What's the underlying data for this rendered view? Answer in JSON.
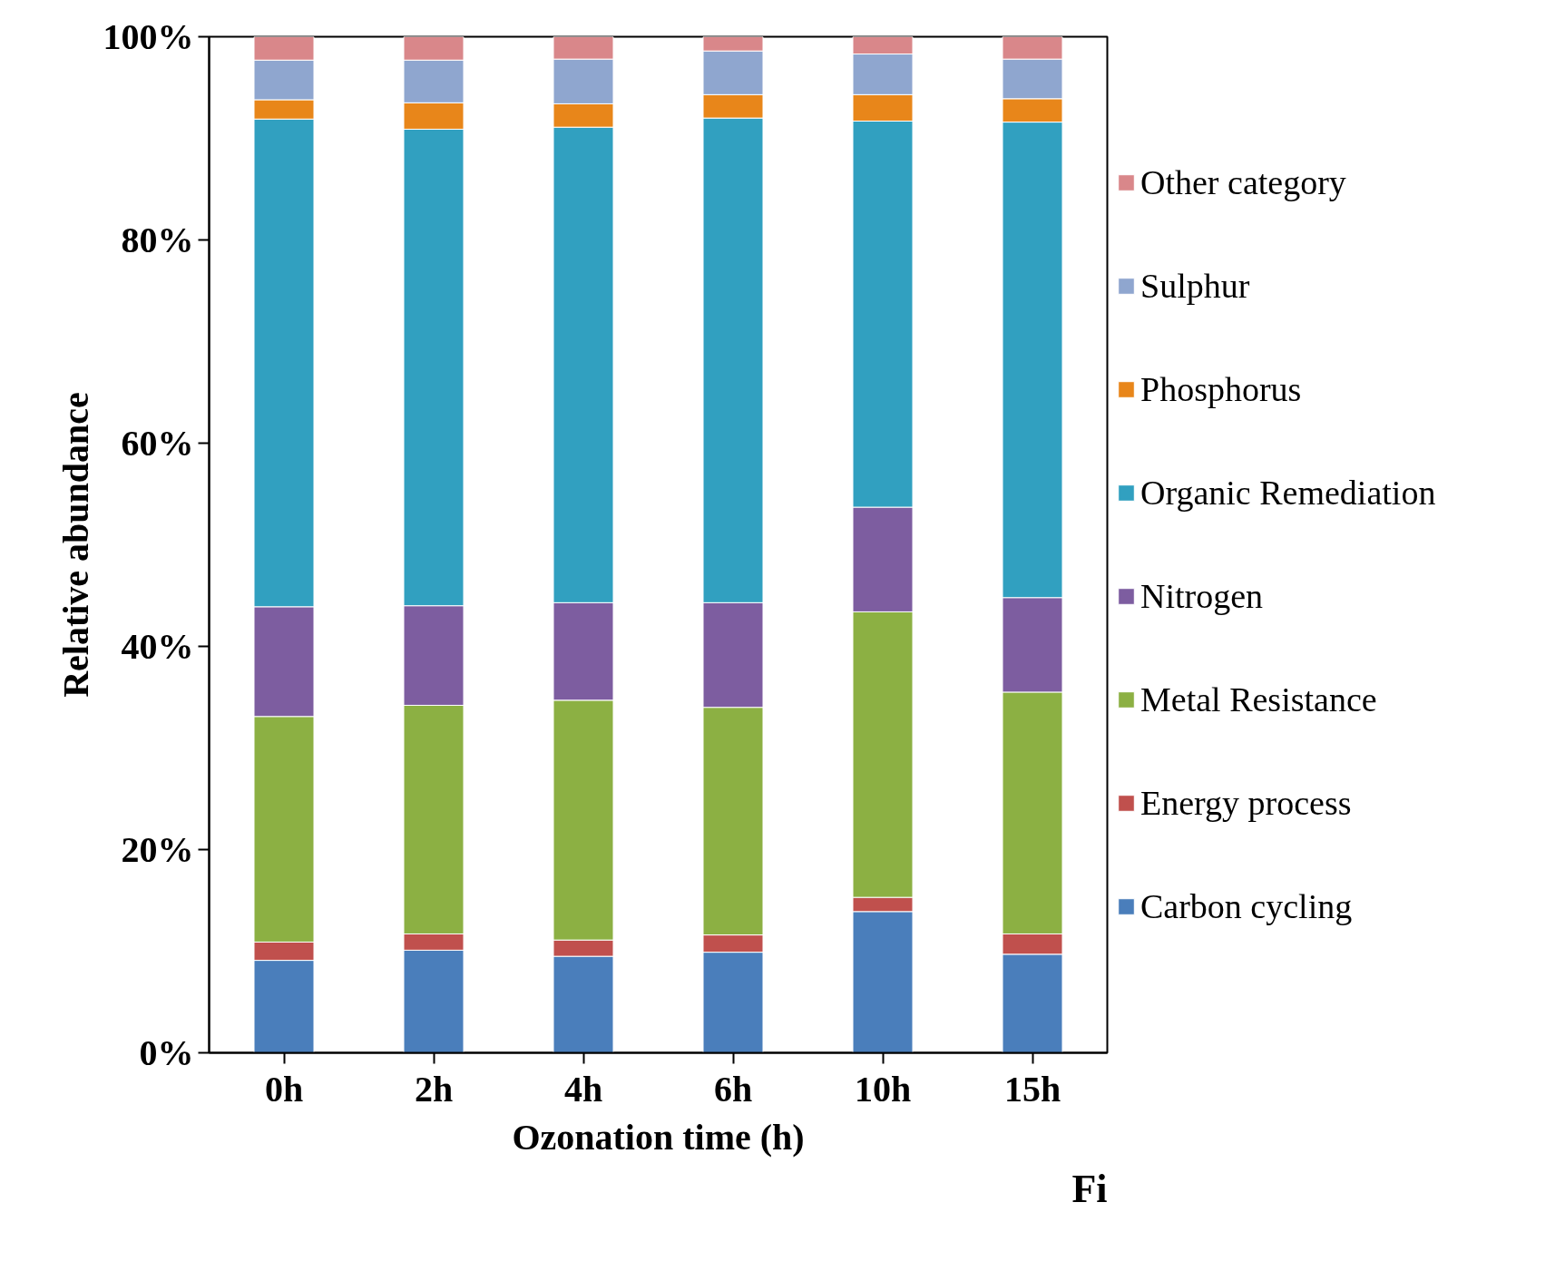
{
  "chart_data": {
    "type": "bar",
    "stacked": true,
    "xlabel": "Ozonation time (h)",
    "ylabel": "Relative abundance",
    "categories": [
      "0h",
      "2h",
      "4h",
      "6h",
      "10h",
      "15h"
    ],
    "series": [
      {
        "name": "Carbon cycling",
        "color": "#4a7ebb",
        "values": [
          9.1,
          10.1,
          9.5,
          9.9,
          13.9,
          9.7
        ]
      },
      {
        "name": "Energy process",
        "color": "#c0504d",
        "values": [
          1.8,
          1.6,
          1.6,
          1.7,
          1.4,
          2.0
        ]
      },
      {
        "name": "Metal Resistance",
        "color": "#8cb043",
        "values": [
          22.2,
          22.5,
          23.6,
          22.4,
          28.1,
          23.8
        ]
      },
      {
        "name": "Nitrogen",
        "color": "#7d5da0",
        "values": [
          10.8,
          9.8,
          9.6,
          10.3,
          10.3,
          9.3
        ]
      },
      {
        "name": "Organic Remediation",
        "color": "#31a0c0",
        "values": [
          48.0,
          46.9,
          46.8,
          47.7,
          38.0,
          46.8
        ]
      },
      {
        "name": "Phosphorus",
        "color": "#e8861a",
        "values": [
          1.9,
          2.6,
          2.3,
          2.3,
          2.6,
          2.3
        ]
      },
      {
        "name": "Sulphur",
        "color": "#8fa6cf",
        "values": [
          3.9,
          4.2,
          4.4,
          4.3,
          4.0,
          3.9
        ]
      },
      {
        "name": "Other category",
        "color": "#d9878a",
        "values": [
          2.3,
          2.3,
          2.2,
          1.4,
          1.7,
          2.2
        ]
      }
    ],
    "ylim": [
      0,
      100
    ],
    "yticks": [
      {
        "value": 0,
        "label": "0%"
      },
      {
        "value": 20,
        "label": "20%"
      },
      {
        "value": 40,
        "label": "40%"
      },
      {
        "value": 60,
        "label": "60%"
      },
      {
        "value": 80,
        "label": "80%"
      },
      {
        "value": 100,
        "label": "100%"
      }
    ],
    "grid": false,
    "legend": "right",
    "annotations": [
      "Fi"
    ]
  }
}
